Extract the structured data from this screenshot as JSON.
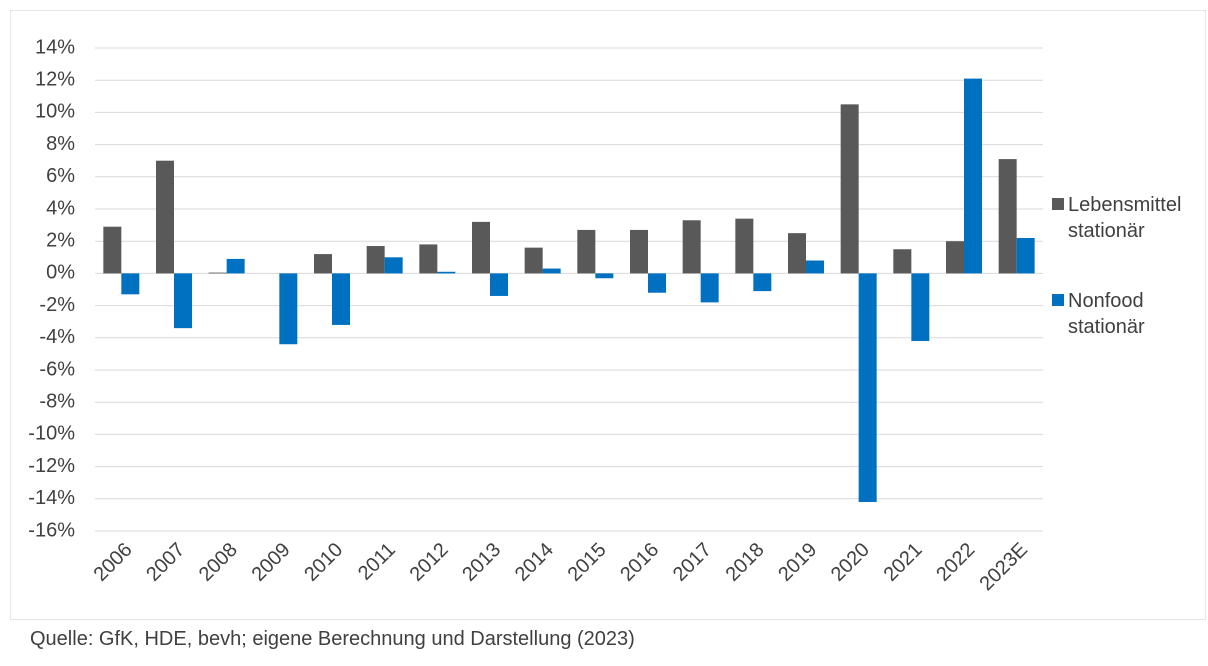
{
  "chart_data": {
    "type": "bar",
    "categories": [
      "2006",
      "2007",
      "2008",
      "2009",
      "2010",
      "2011",
      "2012",
      "2013",
      "2014",
      "2015",
      "2016",
      "2017",
      "2018",
      "2019",
      "2020",
      "2021",
      "2022",
      "2023E"
    ],
    "series": [
      {
        "name": "Lebensmittel stationär",
        "color": "#595959",
        "values": [
          2.9,
          7.0,
          0.05,
          0,
          1.2,
          1.7,
          1.8,
          3.2,
          1.6,
          2.7,
          2.7,
          3.3,
          3.4,
          2.5,
          10.5,
          1.5,
          2.0,
          7.1
        ]
      },
      {
        "name": "Nonfood stationär",
        "color": "#0070c0",
        "values": [
          -1.3,
          -3.4,
          0.9,
          -4.4,
          -3.2,
          1.0,
          0.1,
          -1.4,
          0.3,
          -0.3,
          -1.2,
          -1.8,
          -1.1,
          0.8,
          -14.2,
          -4.2,
          12.1,
          2.2
        ]
      }
    ],
    "ylim": [
      -16,
      14
    ],
    "yticks": [
      {
        "value": 14,
        "label": "14%"
      },
      {
        "value": 12,
        "label": "12%"
      },
      {
        "value": 10,
        "label": "10%"
      },
      {
        "value": 8,
        "label": "8%"
      },
      {
        "value": 6,
        "label": "6%"
      },
      {
        "value": 4,
        "label": "4%"
      },
      {
        "value": 2,
        "label": "2%"
      },
      {
        "value": 0,
        "label": "0%"
      },
      {
        "value": -2,
        "label": "-2%"
      },
      {
        "value": -4,
        "label": "-4%"
      },
      {
        "value": -6,
        "label": "-6%"
      },
      {
        "value": -8,
        "label": "-8%"
      },
      {
        "value": -10,
        "label": "-10%"
      },
      {
        "value": -12,
        "label": "-12%"
      },
      {
        "value": -14,
        "label": "-14%"
      },
      {
        "value": -16,
        "label": "-16%"
      }
    ],
    "grid": true,
    "legend": "right",
    "source": "Quelle: GfK, HDE, bevh; eigene Berechnung und Darstellung (2023)"
  }
}
